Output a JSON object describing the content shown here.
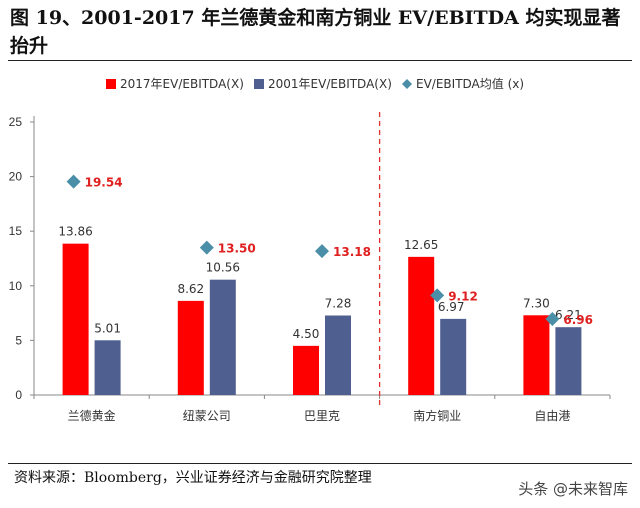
{
  "figure": {
    "title": "图 19、2001-2017 年兰德黄金和南方铜业 EV/EBITDA 均实现显著抬升",
    "source": "资料来源：Bloomberg，兴业证券经济与金融研究院整理",
    "watermark": "头条 @未来智库"
  },
  "chart_data": {
    "type": "bar",
    "categories": [
      "兰德黄金",
      "纽蒙公司",
      "巴里克",
      "南方铜业",
      "自由港"
    ],
    "series": [
      {
        "name": "2017年EV/EBITDA(X)",
        "type": "bar",
        "color": "#ff0000",
        "values": [
          13.86,
          8.62,
          4.5,
          12.65,
          7.3
        ]
      },
      {
        "name": "2001年EV/EBITDA(X)",
        "type": "bar",
        "color": "#4f5f8f",
        "values": [
          5.01,
          10.56,
          7.28,
          6.97,
          6.21
        ]
      },
      {
        "name": "EV/EBITDA均值  (x)",
        "type": "scatter",
        "marker": "diamond",
        "color": "#4a8ea8",
        "values": [
          19.54,
          13.5,
          13.18,
          9.12,
          6.96
        ]
      }
    ],
    "bar_labels": {
      "2017": [
        "13.86",
        "8.62",
        "4.50",
        "12.65",
        "7.30"
      ],
      "2001": [
        "5.01",
        "10.56",
        "7.28",
        "6.97",
        "6.21"
      ],
      "mean": [
        "19.54",
        "13.50",
        "13.18",
        "9.12",
        "6.96"
      ]
    },
    "mean_label_color": "#e02020",
    "y_ticks": [
      "0",
      "5",
      "10",
      "15",
      "20",
      "25"
    ],
    "ylim": [
      0,
      25
    ],
    "grid": false,
    "legend": "top",
    "divider_after_category": 2,
    "divider_color": "#e03030"
  }
}
